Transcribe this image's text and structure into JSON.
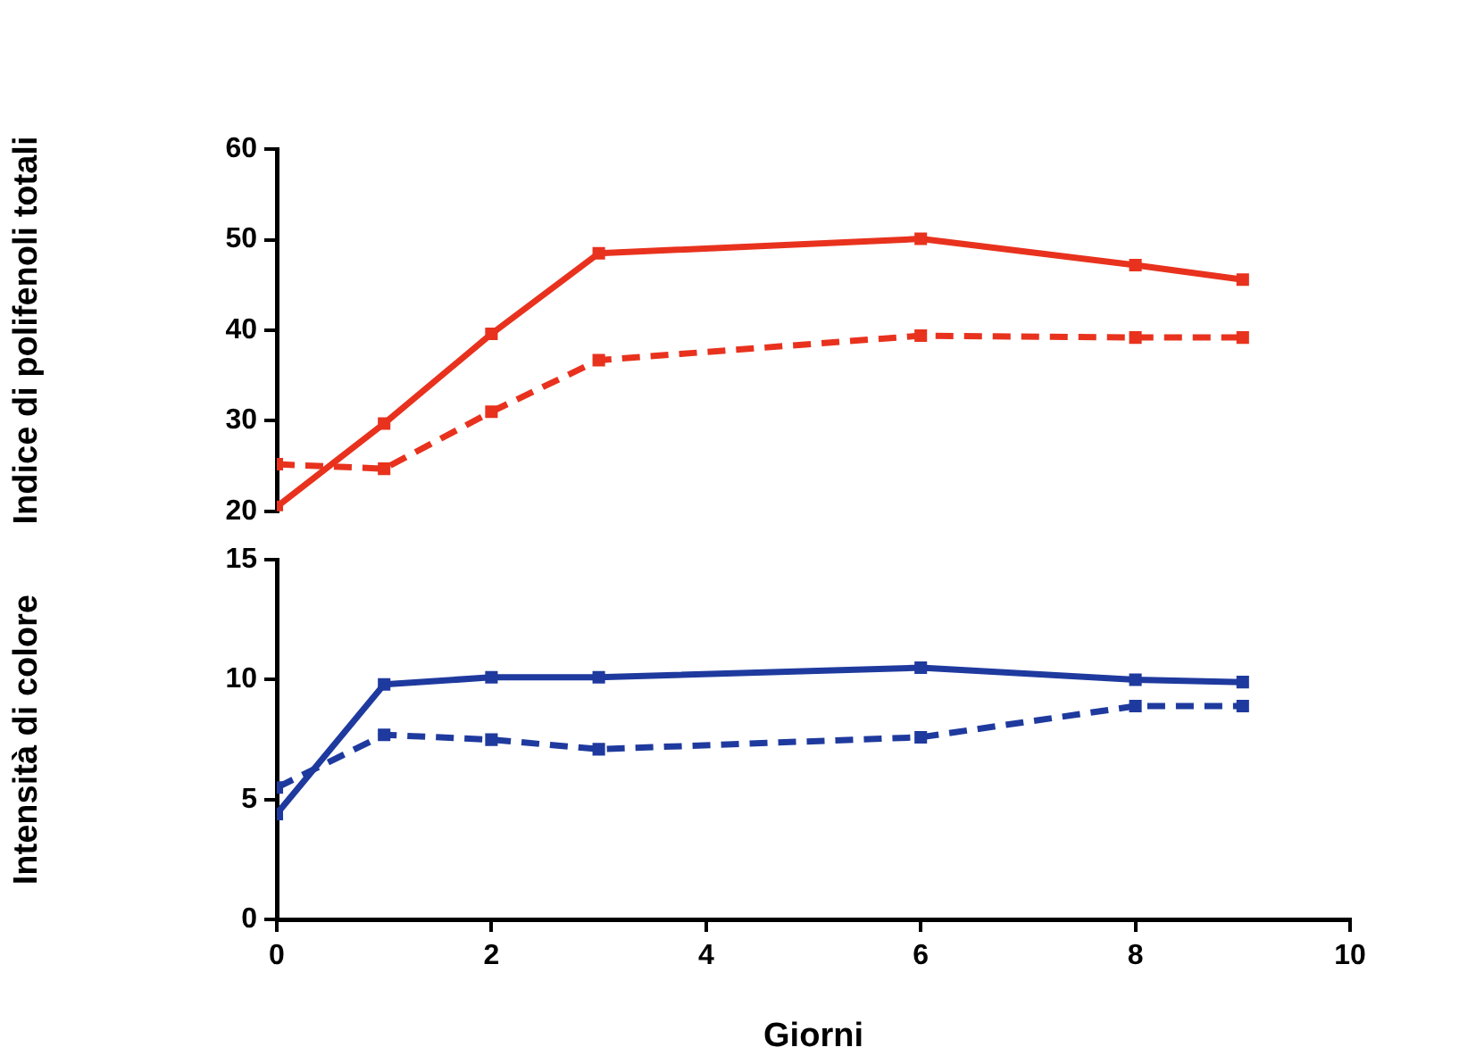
{
  "chart_data": [
    {
      "type": "line",
      "ylabel": "Indice di polifenoli totali",
      "x": [
        0,
        1,
        2,
        3,
        6,
        8,
        9
      ],
      "xlim": [
        0,
        10
      ],
      "ylim": [
        20,
        60
      ],
      "yticks": [
        20,
        30,
        40,
        50,
        60
      ],
      "tick_labels": "y",
      "grid": false,
      "legend": false,
      "marker": "square",
      "series": [
        {
          "color": "#e8321e",
          "line_style": "solid",
          "values": [
            20.5,
            29.7,
            39.6,
            48.5,
            50.1,
            47.2,
            45.6
          ]
        },
        {
          "color": "#e8321e",
          "line_style": "dashed",
          "values": [
            25.2,
            24.7,
            31,
            36.7,
            39.4,
            39.2,
            39.2
          ]
        }
      ]
    },
    {
      "type": "line",
      "ylabel": "Intensità di colore",
      "xlabel": "Giorni",
      "x": [
        0,
        1,
        2,
        3,
        6,
        8,
        9
      ],
      "xlim": [
        0,
        10
      ],
      "xticks": [
        0,
        2,
        4,
        6,
        8,
        10
      ],
      "ylim": [
        0,
        15
      ],
      "yticks": [
        0,
        5,
        10,
        15
      ],
      "grid": false,
      "legend": false,
      "marker": "square",
      "series": [
        {
          "color": "#1f3a9e",
          "line_style": "solid",
          "values": [
            4.4,
            9.8,
            10.1,
            10.1,
            10.5,
            10,
            9.9
          ]
        },
        {
          "color": "#1f3a9e",
          "line_style": "dashed",
          "values": [
            5.5,
            7.7,
            7.5,
            7.1,
            7.6,
            8.9,
            8.9
          ]
        }
      ]
    }
  ]
}
